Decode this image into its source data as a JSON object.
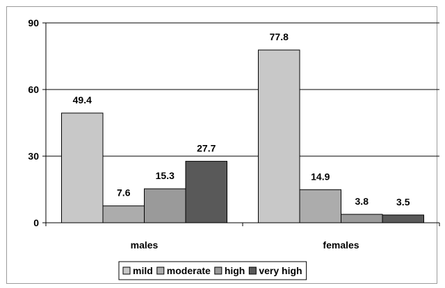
{
  "chart_data": {
    "type": "bar",
    "categories": [
      "males",
      "females"
    ],
    "series": [
      {
        "name": "mild",
        "values": [
          49.4,
          77.8
        ],
        "color": "#c8c8c8"
      },
      {
        "name": "moderate",
        "values": [
          7.6,
          14.9
        ],
        "color": "#acacac"
      },
      {
        "name": "high",
        "values": [
          15.3,
          3.8
        ],
        "color": "#9a9a9a"
      },
      {
        "name": "very high",
        "values": [
          27.7,
          3.5
        ],
        "color": "#595959"
      }
    ],
    "data_labels": [
      [
        "49.4",
        "77.8"
      ],
      [
        "7.6",
        "14.9"
      ],
      [
        "15.3",
        "3.8"
      ],
      [
        "27.7",
        "3.5"
      ]
    ],
    "yticks": [
      0,
      30,
      60,
      90
    ],
    "ylim": [
      0,
      90
    ],
    "title": "",
    "xlabel": "",
    "ylabel": "",
    "grid": true,
    "legend_position": "bottom"
  }
}
